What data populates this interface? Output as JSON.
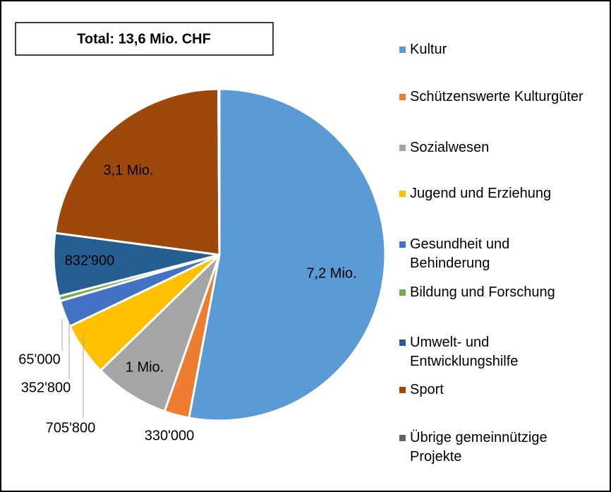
{
  "chart_data": {
    "type": "pie",
    "title": "Total: 13,6 Mio. CHF",
    "categories": [
      "Kultur",
      "Schützenswerte Kulturgüter",
      "Sozialwesen",
      "Jugend und Erziehung",
      "Gesundheit und Behinderung",
      "Bildung und Forschung",
      "Umwelt- und Entwicklungshilfe",
      "Sport",
      "Übrige gemeinnützige Projekte"
    ],
    "values": [
      7200000,
      330000,
      1000000,
      705800,
      352800,
      65000,
      832900,
      3100000,
      13500
    ],
    "value_labels": [
      "7,2 Mio.",
      "330'000",
      "1 Mio.",
      "705'800",
      "352'800",
      "65'000",
      "832'900",
      "3,1 Mio.",
      null
    ],
    "colors": [
      "#5b9bd5",
      "#ed7d31",
      "#a5a5a5",
      "#ffc000",
      "#4472c4",
      "#70ad47",
      "#255e91",
      "#9e480e",
      "#636363"
    ],
    "legend": "right"
  }
}
